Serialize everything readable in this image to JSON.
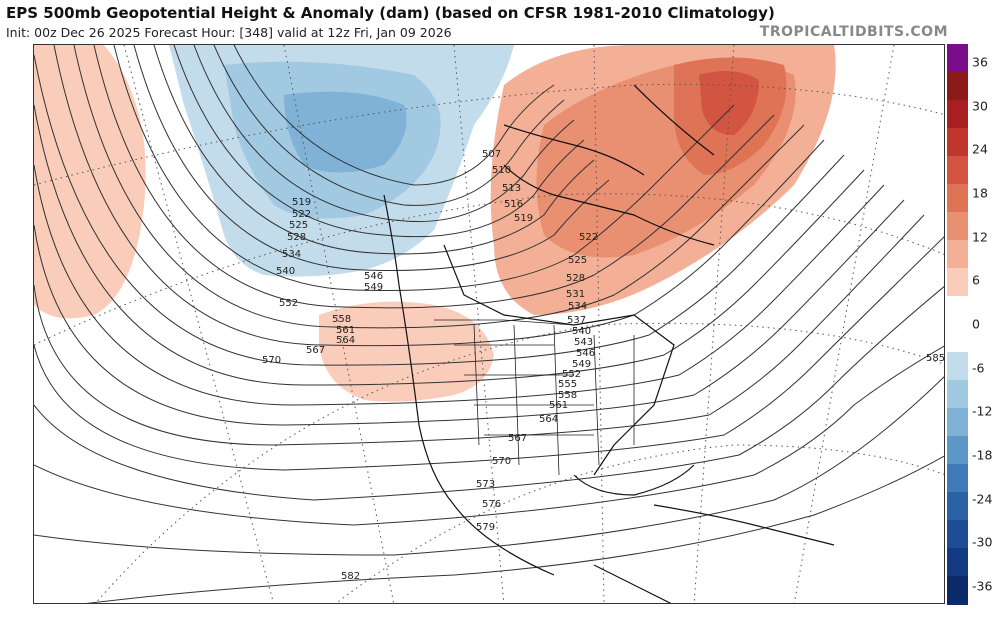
{
  "header": {
    "title": "EPS 500mb Geopotential Height & Anomaly (dam) (based on CFSR 1981-2010 Climatology)",
    "subtitle": "Init: 00z Dec 26 2025   Forecast Hour: [348]   valid at 12z Fri, Jan 09 2026",
    "brand": "TROPICALTIDBITS.COM"
  },
  "colorbar": {
    "ticks": [
      "36",
      "30",
      "24",
      "18",
      "12",
      "6",
      "0",
      "-6",
      "-12",
      "-18",
      "-24",
      "-30",
      "-36"
    ],
    "colors": [
      "#7a0e8a",
      "#8c1a1a",
      "#a81f22",
      "#c0352c",
      "#d15541",
      "#de7356",
      "#e99072",
      "#f3b096",
      "#f9cdb9",
      "#ffffff",
      "#ffffff",
      "#c3dcec",
      "#a2c9e2",
      "#7fb2d6",
      "#5c97c8",
      "#3e7bb8",
      "#2b62a6",
      "#1e4c95",
      "#143a82",
      "#0b2a6a"
    ]
  },
  "contour_labels": [
    "507",
    "510",
    "513",
    "516",
    "519",
    "519",
    "522",
    "525",
    "528",
    "534",
    "540",
    "546",
    "549",
    "552",
    "558",
    "561",
    "564",
    "567",
    "570",
    "522",
    "525",
    "528",
    "531",
    "534",
    "537",
    "540",
    "543",
    "546",
    "549",
    "552",
    "555",
    "558",
    "561",
    "564",
    "567",
    "570",
    "573",
    "576",
    "579",
    "582",
    "585"
  ]
}
